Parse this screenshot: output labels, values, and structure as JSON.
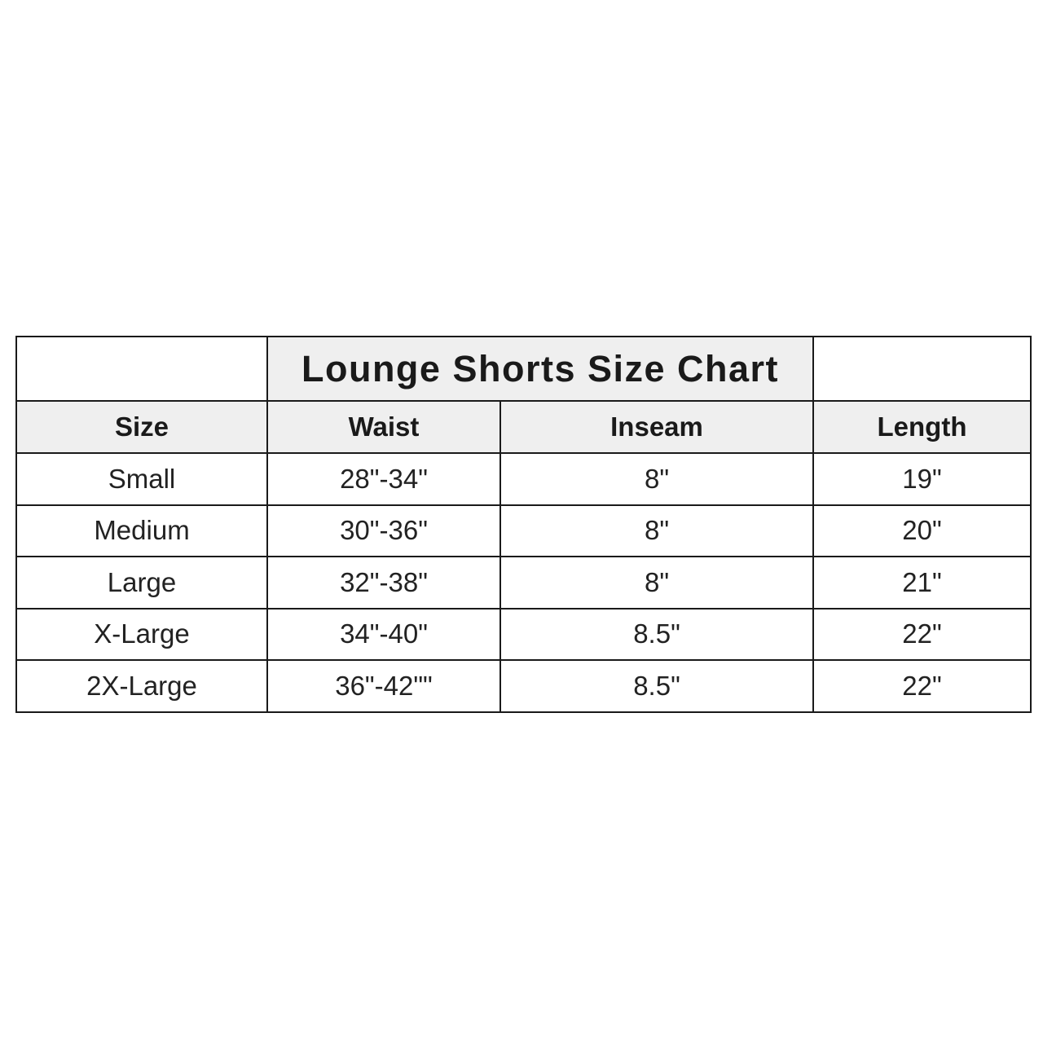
{
  "chart_data": {
    "type": "table",
    "title": "Lounge Shorts Size Chart",
    "columns": [
      "Size",
      "Waist",
      "Inseam",
      "Length"
    ],
    "rows": [
      [
        "Small",
        "28\"-34\"",
        "8\"",
        "19\""
      ],
      [
        "Medium",
        "30\"-36\"",
        "8\"",
        "20\""
      ],
      [
        "Large",
        "32\"-38\"",
        "8\"",
        "21\""
      ],
      [
        "X-Large",
        "34\"-40\"",
        "8.5\"",
        "22\""
      ],
      [
        "2X-Large",
        "36\"-42\"\"",
        "8.5\"",
        "22\""
      ]
    ],
    "colors": {
      "header_background": "#efefef",
      "border": "#1a1a1a"
    }
  }
}
